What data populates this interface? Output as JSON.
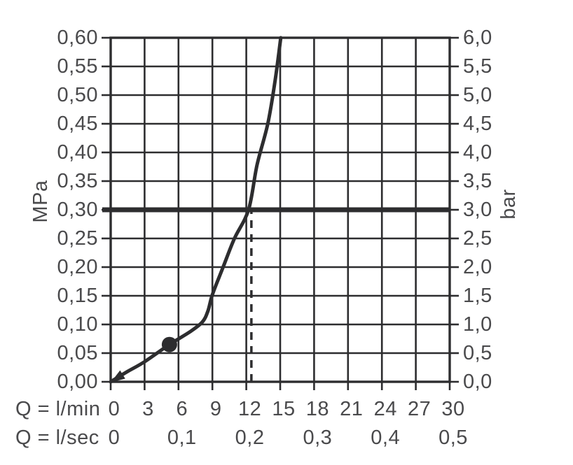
{
  "colors": {
    "line": "#2d2d2f",
    "text": "#4a4a4c",
    "background": "#ffffff"
  },
  "chart_data": {
    "type": "line",
    "grid": {
      "x_step_lmin": 3,
      "y_step_mpa": 0.05,
      "grid_on": true
    },
    "axes": {
      "left": {
        "label": "MPa",
        "min": 0.0,
        "max": 0.6,
        "step": 0.05,
        "tick_labels": [
          "0,00",
          "0,05",
          "0,10",
          "0,15",
          "0,20",
          "0,25",
          "0,30",
          "0,35",
          "0,40",
          "0,45",
          "0,50",
          "0,55",
          "0,60"
        ]
      },
      "right": {
        "label": "bar",
        "min": 0.0,
        "max": 6.0,
        "step": 0.5,
        "tick_labels": [
          "0,0",
          "0,5",
          "1,0",
          "1,5",
          "2,0",
          "2,5",
          "3,0",
          "3,5",
          "4,0",
          "4,5",
          "5,0",
          "5,5",
          "6,0"
        ]
      },
      "bottom_lmin": {
        "label": "Q = l/min",
        "min": 0,
        "max": 30,
        "step": 3,
        "tick_labels": [
          "0",
          "3",
          "6",
          "9",
          "12",
          "15",
          "18",
          "21",
          "24",
          "27",
          "30"
        ]
      },
      "bottom_lsec": {
        "label": "Q = l/sec",
        "ticks": [
          {
            "q_lmin": 0,
            "label": "0"
          },
          {
            "q_lmin": 6,
            "label": "0,1"
          },
          {
            "q_lmin": 12,
            "label": "0,2"
          },
          {
            "q_lmin": 18,
            "label": "0,3"
          },
          {
            "q_lmin": 24,
            "label": "0,4"
          },
          {
            "q_lmin": 30,
            "label": "0,5"
          }
        ]
      }
    },
    "series": [
      {
        "name": "flow-curve",
        "points_q_lmin_p_mpa": [
          [
            0,
            0.0
          ],
          [
            1.5,
            0.018
          ],
          [
            3,
            0.035
          ],
          [
            5.2,
            0.065
          ],
          [
            7,
            0.087
          ],
          [
            8.1,
            0.104
          ],
          [
            8.6,
            0.123
          ],
          [
            9,
            0.152
          ],
          [
            9.95,
            0.2
          ],
          [
            10.95,
            0.25
          ],
          [
            12.2,
            0.3
          ],
          [
            12.95,
            0.378
          ],
          [
            13.9,
            0.45
          ],
          [
            14.55,
            0.525
          ],
          [
            15.05,
            0.6
          ]
        ],
        "has_origin_arrow": true
      }
    ],
    "marker_point": {
      "q_lmin": 5.2,
      "p_mpa": 0.065
    },
    "reference_lines": {
      "horizontal_thick_p_mpa": 0.3,
      "vertical_dashed_q_lmin": 12.45,
      "vertical_dashed_top_p_mpa": 0.3
    }
  }
}
